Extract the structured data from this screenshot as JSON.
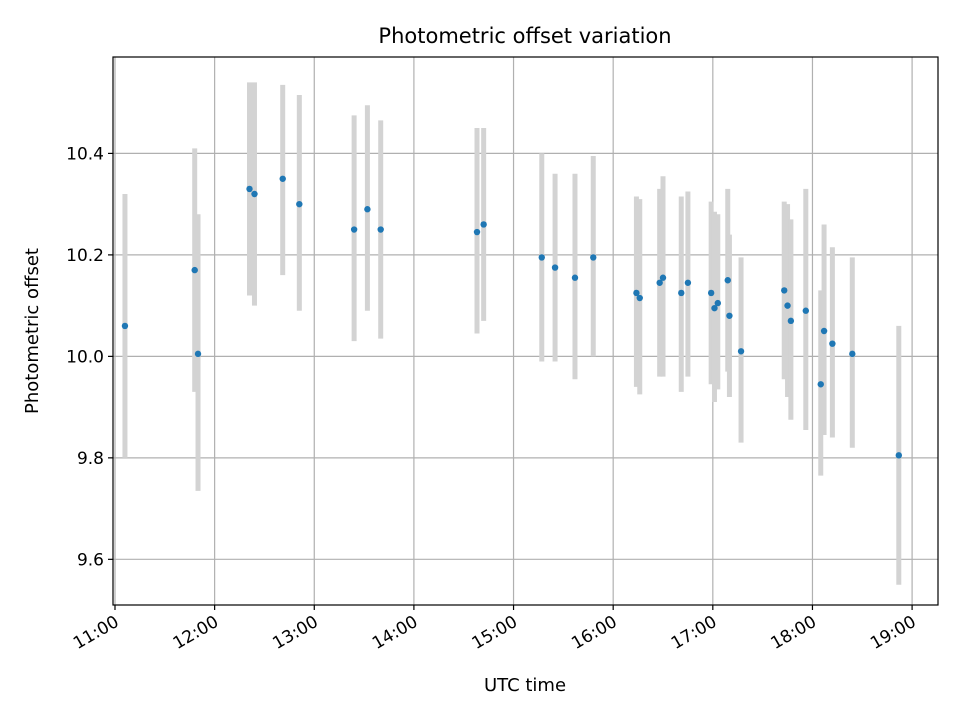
{
  "chart_data": {
    "type": "scatter",
    "title": "Photometric offset variation",
    "xlabel": "UTC time",
    "ylabel": "Photometric offset",
    "x_ticks": [
      "11:00",
      "12:00",
      "13:00",
      "14:00",
      "15:00",
      "16:00",
      "17:00",
      "18:00",
      "19:00"
    ],
    "x_tick_hours": [
      11,
      12,
      13,
      14,
      15,
      16,
      17,
      18,
      19
    ],
    "xlim_hours": [
      10.98,
      19.26
    ],
    "y_ticks": [
      9.6,
      9.8,
      10.0,
      10.2,
      10.4
    ],
    "y_tick_labels": [
      "9.6",
      "9.8",
      "10.0",
      "10.2",
      "10.4"
    ],
    "ylim": [
      9.51,
      10.59
    ],
    "grid": true,
    "colors": {
      "points": "#1f77b4",
      "errorbars": "#d3d3d3",
      "grid": "#b0b0b0"
    },
    "points": [
      {
        "x": "11:06",
        "y": 10.06,
        "ylow": 9.8,
        "yhigh": 10.32
      },
      {
        "x": "11:48",
        "y": 10.17,
        "ylow": 9.93,
        "yhigh": 10.41
      },
      {
        "x": "11:50",
        "y": 10.005,
        "ylow": 9.735,
        "yhigh": 10.28
      },
      {
        "x": "12:21",
        "y": 10.33,
        "ylow": 10.12,
        "yhigh": 10.54
      },
      {
        "x": "12:24",
        "y": 10.32,
        "ylow": 10.1,
        "yhigh": 10.54
      },
      {
        "x": "12:41",
        "y": 10.35,
        "ylow": 10.16,
        "yhigh": 10.535
      },
      {
        "x": "12:51",
        "y": 10.3,
        "ylow": 10.09,
        "yhigh": 10.515
      },
      {
        "x": "13:24",
        "y": 10.25,
        "ylow": 10.03,
        "yhigh": 10.475
      },
      {
        "x": "13:32",
        "y": 10.29,
        "ylow": 10.09,
        "yhigh": 10.495
      },
      {
        "x": "13:40",
        "y": 10.25,
        "ylow": 10.035,
        "yhigh": 10.465
      },
      {
        "x": "14:38",
        "y": 10.245,
        "ylow": 10.045,
        "yhigh": 10.45
      },
      {
        "x": "14:42",
        "y": 10.26,
        "ylow": 10.07,
        "yhigh": 10.45
      },
      {
        "x": "15:17",
        "y": 10.195,
        "ylow": 9.99,
        "yhigh": 10.4
      },
      {
        "x": "15:25",
        "y": 10.175,
        "ylow": 9.99,
        "yhigh": 10.36
      },
      {
        "x": "15:37",
        "y": 10.155,
        "ylow": 9.955,
        "yhigh": 10.36
      },
      {
        "x": "15:48",
        "y": 10.195,
        "ylow": 10.0,
        "yhigh": 10.395
      },
      {
        "x": "16:14",
        "y": 10.125,
        "ylow": 9.94,
        "yhigh": 10.315
      },
      {
        "x": "16:16",
        "y": 10.115,
        "ylow": 9.925,
        "yhigh": 10.31
      },
      {
        "x": "16:28",
        "y": 10.145,
        "ylow": 9.96,
        "yhigh": 10.33
      },
      {
        "x": "16:30",
        "y": 10.155,
        "ylow": 9.96,
        "yhigh": 10.355
      },
      {
        "x": "16:41",
        "y": 10.125,
        "ylow": 9.93,
        "yhigh": 10.315
      },
      {
        "x": "16:45",
        "y": 10.145,
        "ylow": 9.96,
        "yhigh": 10.325
      },
      {
        "x": "16:59",
        "y": 10.125,
        "ylow": 9.945,
        "yhigh": 10.305
      },
      {
        "x": "17:01",
        "y": 10.095,
        "ylow": 9.91,
        "yhigh": 10.285
      },
      {
        "x": "17:03",
        "y": 10.105,
        "ylow": 9.935,
        "yhigh": 10.28
      },
      {
        "x": "17:09",
        "y": 10.15,
        "ylow": 9.97,
        "yhigh": 10.33
      },
      {
        "x": "17:10",
        "y": 10.08,
        "ylow": 9.92,
        "yhigh": 10.24
      },
      {
        "x": "17:17",
        "y": 10.01,
        "ylow": 9.83,
        "yhigh": 10.195
      },
      {
        "x": "17:43",
        "y": 10.13,
        "ylow": 9.955,
        "yhigh": 10.305
      },
      {
        "x": "17:45",
        "y": 10.1,
        "ylow": 9.92,
        "yhigh": 10.3
      },
      {
        "x": "17:47",
        "y": 10.07,
        "ylow": 9.875,
        "yhigh": 10.27
      },
      {
        "x": "17:56",
        "y": 10.09,
        "ylow": 9.855,
        "yhigh": 10.33
      },
      {
        "x": "18:05",
        "y": 9.945,
        "ylow": 9.765,
        "yhigh": 10.13
      },
      {
        "x": "18:07",
        "y": 10.05,
        "ylow": 9.845,
        "yhigh": 10.26
      },
      {
        "x": "18:12",
        "y": 10.025,
        "ylow": 9.84,
        "yhigh": 10.215
      },
      {
        "x": "18:24",
        "y": 10.005,
        "ylow": 9.82,
        "yhigh": 10.195
      },
      {
        "x": "18:52",
        "y": 9.805,
        "ylow": 9.55,
        "yhigh": 10.06
      }
    ]
  }
}
